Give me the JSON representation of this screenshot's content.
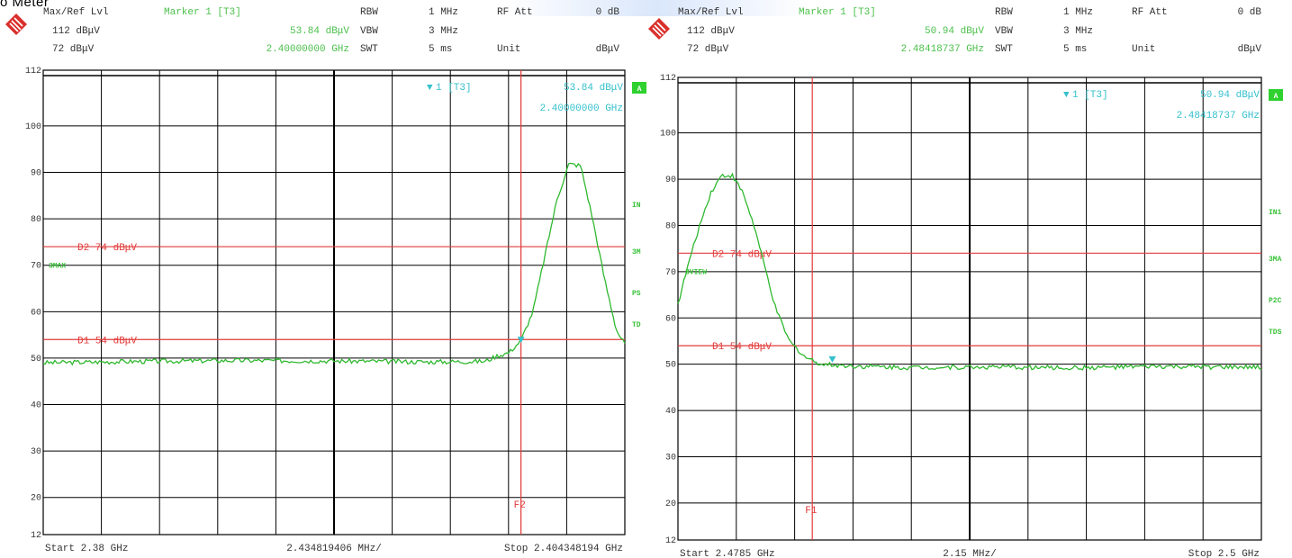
{
  "page": {
    "caption": "o Meter"
  },
  "charts": [
    {
      "header": {
        "row1": {
          "ref_label": "Max/Ref Lvl",
          "marker_title": "Marker 1 [T3]",
          "rbw_label": "RBW",
          "rbw_value": "1 MHz",
          "att_label": "RF Att",
          "att_value": "0 dB"
        },
        "row2": {
          "ref_level": "112 dBμV",
          "marker_level": "53.84 dBμV",
          "vbw_label": "VBW",
          "vbw_value": "3 MHz"
        },
        "row3": {
          "ref2": "72 dBμV",
          "marker_freq": "2.40000000 GHz",
          "swt_label": "SWT",
          "swt_value": "5 ms",
          "unit_label": "Unit",
          "unit_value": "dBμV"
        }
      },
      "marker_box": {
        "name": "1 [T3]",
        "level": "53.84 dBμV",
        "freq": "2.40000000 GHz"
      },
      "lines": {
        "d2": "D2 74 dBμV",
        "d1": "D1 54 dBμV",
        "f": "F2"
      },
      "trace_label": "3MAX",
      "side_labels": [
        "A",
        "IN",
        "3M",
        "PS",
        "TD"
      ],
      "footer": {
        "start": "Start 2.38 GHz",
        "span": "2.434819406 MHz/",
        "stop": "Stop 2.404348194 GHz"
      }
    },
    {
      "header": {
        "row1": {
          "ref_label": "Max/Ref Lvl",
          "marker_title": "Marker 1 [T3]",
          "rbw_label": "RBW",
          "rbw_value": "1 MHz",
          "att_label": "RF Att",
          "att_value": "0 dB"
        },
        "row2": {
          "ref_level": "112 dBμV",
          "marker_level": "50.94 dBμV",
          "vbw_label": "VBW",
          "vbw_value": "3 MHz"
        },
        "row3": {
          "ref2": "72 dBμV",
          "marker_freq": "2.48418737 GHz",
          "swt_label": "SWT",
          "swt_value": "5 ms",
          "unit_label": "Unit",
          "unit_value": "dBμV"
        }
      },
      "marker_box": {
        "name": "1 [T3]",
        "level": "50.94 dBμV",
        "freq": "2.48418737 GHz"
      },
      "lines": {
        "d2": "D2 74 dBμV",
        "d1": "D1 54 dBμV",
        "f": "F1"
      },
      "trace_label": "3VIEW",
      "side_labels": [
        "A",
        "IN1",
        "3MA",
        "P2C",
        "TDS"
      ],
      "footer": {
        "start": "Start 2.4785 GHz",
        "span": "2.15 MHz/",
        "stop": "Stop 2.5 GHz"
      }
    }
  ],
  "chart_data": [
    {
      "type": "line",
      "title": "",
      "xlim": [
        2.38,
        2.404348194
      ],
      "ylim": [
        12,
        112
      ],
      "yticks": [
        112,
        100,
        90,
        80,
        70,
        60,
        50,
        40,
        30,
        20,
        12
      ],
      "grid": true,
      "reference_lines": [
        {
          "name": "D2",
          "y": 74
        },
        {
          "name": "D1",
          "y": 54
        }
      ],
      "frequency_line": {
        "name": "F2",
        "x": 2.4
      },
      "marker": {
        "name": "1",
        "x": 2.4,
        "y": 53.84
      },
      "series": [
        {
          "name": "3MAX",
          "x": [
            2.38,
            2.384,
            2.388,
            2.392,
            2.396,
            2.3985,
            2.399,
            2.3995,
            2.4,
            2.4005,
            2.401,
            2.4015,
            2.402,
            2.4025,
            2.403,
            2.4035,
            2.404,
            2.404348194
          ],
          "y": [
            49,
            49.3,
            49.5,
            49.4,
            49.2,
            49.3,
            50.5,
            51.2,
            53.8,
            60,
            72,
            84,
            91.8,
            91.5,
            80,
            67,
            56,
            53
          ]
        }
      ]
    },
    {
      "type": "line",
      "title": "",
      "xlim": [
        2.4785,
        2.5
      ],
      "ylim": [
        12,
        112
      ],
      "yticks": [
        112,
        100,
        90,
        80,
        70,
        60,
        50,
        40,
        30,
        20,
        12
      ],
      "grid": true,
      "reference_lines": [
        {
          "name": "D2",
          "y": 74
        },
        {
          "name": "D1",
          "y": 54
        }
      ],
      "frequency_line": {
        "name": "F1",
        "x": 2.48345
      },
      "marker": {
        "name": "1",
        "x": 2.48419,
        "y": 50.94
      },
      "series": [
        {
          "name": "3VIEW",
          "x": [
            2.4785,
            2.4789,
            2.4793,
            2.4797,
            2.4801,
            2.4805,
            2.4809,
            2.4813,
            2.4817,
            2.4821,
            2.4826,
            2.4832,
            2.4838,
            2.485,
            2.487,
            2.49,
            2.493,
            2.496,
            2.5
          ],
          "y": [
            63,
            72,
            80,
            87,
            90.8,
            90.8,
            87,
            80,
            71,
            62,
            55,
            51.5,
            50,
            49.6,
            49.3,
            49.4,
            49.2,
            49.5,
            49.3
          ]
        }
      ]
    }
  ]
}
